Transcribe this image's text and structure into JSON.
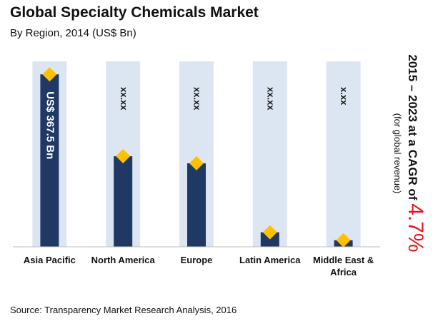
{
  "title": "Global Specialty Chemicals Market",
  "subtitle": "By Region, 2014 (US$ Bn)",
  "source": "Source: Transparency Market Research Analysis, 2016",
  "cagr": {
    "prefix": "2015 – 2023 at a CAGR of ",
    "value": "4.7%",
    "note": "(for global revenue)"
  },
  "colors": {
    "bar": "#1f3864",
    "band": "#dce6f2",
    "marker": "#ffc000",
    "cagr_value": "#e8141b"
  },
  "chart_data": {
    "type": "bar",
    "title": "Global Specialty Chemicals Market",
    "subtitle": "By Region, 2014 (US$ Bn)",
    "categories": [
      "Asia Pacific",
      "North America",
      "Europe",
      "Latin America",
      "Middle East & Africa"
    ],
    "values": [
      367.5,
      193,
      178,
      31,
      14
    ],
    "value_labels": [
      "US$ 367.5 Bn",
      "xx.xx",
      "xx.xx",
      "xx.xx",
      "x.xx"
    ],
    "ylim": [
      0,
      380
    ],
    "grid": false,
    "legend": "none"
  }
}
